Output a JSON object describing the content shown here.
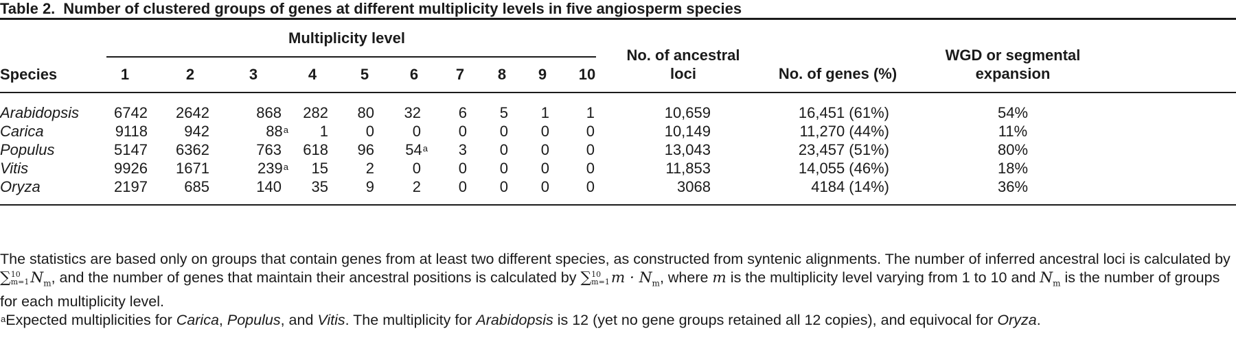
{
  "table": {
    "number": "Table 2.",
    "caption": "Number of clustered groups of genes at different multiplicity levels in five angiosperm species",
    "headers": {
      "species": "Species",
      "multiplicity_group": "Multiplicity level",
      "levels": [
        "1",
        "2",
        "3",
        "4",
        "5",
        "6",
        "7",
        "8",
        "9",
        "10"
      ],
      "ancestral_loci_line1": "No. of ancestral",
      "ancestral_loci_line2": "loci",
      "genes": "No. of genes (%)",
      "wgd_line1": "WGD or segmental",
      "wgd_line2": "expansion"
    },
    "rows": [
      {
        "species": "Arabidopsis",
        "levels": [
          "6742",
          "2642",
          "868",
          "282",
          "80",
          "32",
          "6",
          "5",
          "1",
          "1"
        ],
        "ancestral_loci": "10,659",
        "genes": "16,451 (61%)",
        "wgd": "54%"
      },
      {
        "species": "Carica",
        "levels": [
          "9118",
          "942",
          "88",
          "1",
          "0",
          "0",
          "0",
          "0",
          "0",
          "0"
        ],
        "ancestral_loci": "10,149",
        "genes": "11,270 (44%)",
        "wgd": "11%"
      },
      {
        "species": "Populus",
        "levels": [
          "5147",
          "6362",
          "763",
          "618",
          "96",
          "54",
          "3",
          "0",
          "0",
          "0"
        ],
        "ancestral_loci": "13,043",
        "genes": "23,457 (51%)",
        "wgd": "80%"
      },
      {
        "species": "Vitis",
        "levels": [
          "9926",
          "1671",
          "239",
          "15",
          "2",
          "0",
          "0",
          "0",
          "0",
          "0"
        ],
        "ancestral_loci": "11,853",
        "genes": "14,055 (46%)",
        "wgd": "18%"
      },
      {
        "species": "Oryza",
        "levels": [
          "2197",
          "685",
          "140",
          "35",
          "9",
          "2",
          "0",
          "0",
          "0",
          "0"
        ],
        "ancestral_loci": "3068",
        "genes": "4184 (14%)",
        "wgd": "36%"
      }
    ],
    "footnote_mark": "a",
    "notes": {
      "p1_a": "The statistics are based only on groups that contain genes from at least two different species, as constructed from syntenic alignments. The number of inferred ancestral loci is calculated by ",
      "p1_b": ", and the number of genes that maintain their ancestral positions is calculated by ",
      "p1_c": ", where ",
      "p1_d": " is the multiplicity level varying from 1 to 10 and ",
      "p1_e": " is the number of groups for each multiplicity level.",
      "sum_upper": "10",
      "sum_lower": "m=1",
      "var_m": "m",
      "var_N": "N",
      "sub_m": "m",
      "p2_a": "Expected multiplicities for ",
      "p2_carica": "Carica",
      "p2_comma1": ", ",
      "p2_populus": "Populus",
      "p2_and": ", and ",
      "p2_vitis": "Vitis",
      "p2_b": ". The multiplicity for ",
      "p2_arabidopsis": "Arabidopsis",
      "p2_c": " is 12 (yet no gene groups retained all 12 copies), and equivocal for ",
      "p2_oryza": "Oryza",
      "p2_end": "."
    }
  }
}
